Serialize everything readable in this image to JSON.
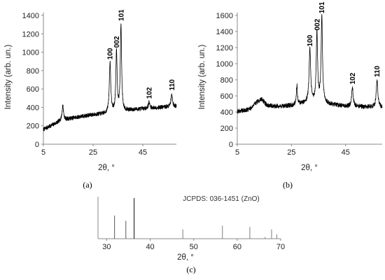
{
  "chart_data": [
    {
      "id": "a",
      "type": "line",
      "panel_label": "(a)",
      "xlabel": "2θ, °",
      "ylabel": "Intensity (arb. un.)",
      "xlim": [
        5,
        60
      ],
      "ylim": [
        0,
        1400
      ],
      "xticks": [
        5,
        25,
        45
      ],
      "yticks": [
        0,
        200,
        400,
        600,
        800,
        1000,
        1200,
        1400
      ],
      "baseline": [
        [
          5,
          160
        ],
        [
          8,
          200
        ],
        [
          12,
          255
        ],
        [
          16,
          280
        ],
        [
          20,
          300
        ],
        [
          25,
          320
        ],
        [
          30,
          330
        ],
        [
          35,
          345
        ],
        [
          40,
          370
        ],
        [
          45,
          385
        ],
        [
          50,
          395
        ],
        [
          55,
          405
        ],
        [
          58,
          410
        ]
      ],
      "peaks": [
        {
          "x": 12.8,
          "y": 420,
          "w": 0.35
        },
        {
          "x": 31.8,
          "y": 880,
          "w": 0.35,
          "label": "100"
        },
        {
          "x": 34.4,
          "y": 1010,
          "w": 0.3,
          "label": "002"
        },
        {
          "x": 36.2,
          "y": 1300,
          "w": 0.3,
          "label": "101"
        },
        {
          "x": 47.5,
          "y": 455,
          "w": 0.35,
          "label": "102"
        },
        {
          "x": 56.6,
          "y": 545,
          "w": 0.35,
          "label": "110"
        }
      ],
      "noise": 22
    },
    {
      "id": "b",
      "type": "line",
      "panel_label": "(b)",
      "xlabel": "2θ, °",
      "ylabel": "Intensity (arb. un.)",
      "xlim": [
        5,
        60
      ],
      "ylim": [
        0,
        1600
      ],
      "xticks": [
        5,
        25,
        45
      ],
      "yticks": [
        0,
        200,
        400,
        600,
        800,
        1000,
        1200,
        1400,
        1600
      ],
      "baseline": [
        [
          5,
          410
        ],
        [
          8,
          420
        ],
        [
          10,
          450
        ],
        [
          12,
          520
        ],
        [
          14,
          560
        ],
        [
          16,
          480
        ],
        [
          20,
          470
        ],
        [
          25,
          480
        ],
        [
          30,
          510
        ],
        [
          35,
          520
        ],
        [
          40,
          490
        ],
        [
          45,
          470
        ],
        [
          50,
          465
        ],
        [
          55,
          460
        ],
        [
          59,
          455
        ]
      ],
      "peaks": [
        {
          "x": 27.0,
          "y": 730,
          "w": 0.25
        },
        {
          "x": 31.8,
          "y": 1170,
          "w": 0.35,
          "label": "100"
        },
        {
          "x": 34.4,
          "y": 1370,
          "w": 0.3,
          "label": "002"
        },
        {
          "x": 36.2,
          "y": 1580,
          "w": 0.3,
          "label": "101"
        },
        {
          "x": 47.5,
          "y": 700,
          "w": 0.35,
          "label": "102"
        },
        {
          "x": 56.6,
          "y": 790,
          "w": 0.35,
          "label": "110"
        }
      ],
      "noise": 28
    },
    {
      "id": "c",
      "type": "bar",
      "title": "JCPDS: 036-1451 (ZnO)",
      "panel_label": "(c)",
      "xlabel": "2θ, °",
      "xlim": [
        28,
        70
      ],
      "xticks": [
        30,
        40,
        50,
        60,
        70
      ],
      "lines": [
        {
          "x": 31.8,
          "y": 57
        },
        {
          "x": 34.4,
          "y": 44
        },
        {
          "x": 36.3,
          "y": 100
        },
        {
          "x": 47.5,
          "y": 23
        },
        {
          "x": 56.6,
          "y": 32
        },
        {
          "x": 62.9,
          "y": 29
        },
        {
          "x": 66.4,
          "y": 4
        },
        {
          "x": 67.9,
          "y": 23
        },
        {
          "x": 69.1,
          "y": 11
        }
      ]
    }
  ]
}
